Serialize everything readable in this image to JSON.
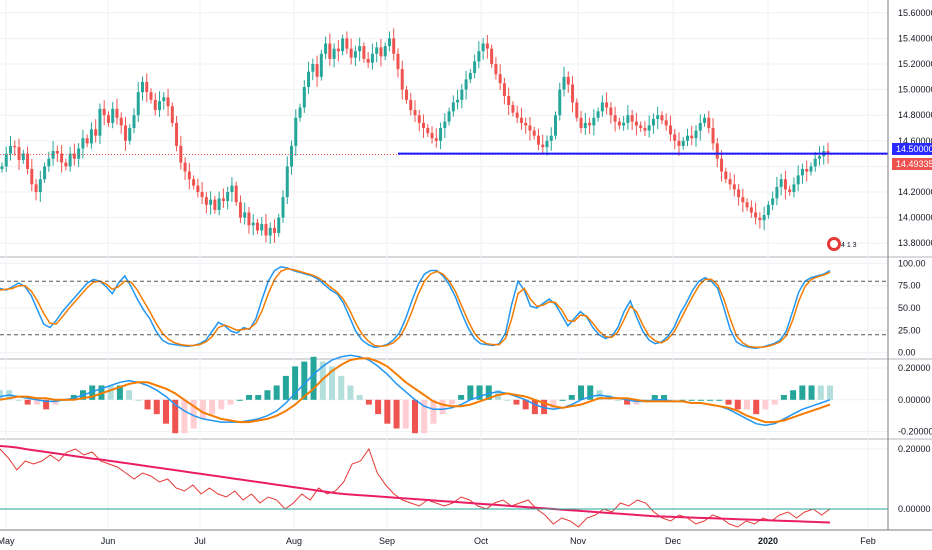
{
  "colors": {
    "up": "#26a69a",
    "down": "#ef5350",
    "k_line": "#2196f3",
    "d_line": "#f57c00",
    "grid": "#eef1f5",
    "axis_line": "#787b86",
    "support_line": "#1a1aff",
    "price_badge": "#ef5350",
    "level_badge": "#2a2aff",
    "rsi_line": "#e53935",
    "rsi_ma": "#e91e63",
    "rsi_green": "#43a047"
  },
  "time_axis": [
    "May",
    "Jun",
    "Jul",
    "Aug",
    "Sep",
    "Oct",
    "Nov",
    "Dec",
    "2020",
    "Feb"
  ],
  "price_badge_text": "14.49335",
  "level_badge_text": "14.50000",
  "event_badge_text": "4 1 3",
  "chart_data": [
    {
      "type": "candlestick",
      "ylim": [
        13.7,
        15.7
      ],
      "y_ticks": [
        "15.60000",
        "15.40000",
        "15.20000",
        "15.00000",
        "14.80000",
        "14.60000",
        "14.40000",
        "14.20000",
        "14.00000",
        "13.80000"
      ],
      "y_tick_values": [
        15.6,
        15.4,
        15.2,
        15.0,
        14.8,
        14.6,
        14.4,
        14.2,
        14.0,
        13.8
      ],
      "support_level": 14.5,
      "last_price": 14.49335,
      "closes": [
        14.4,
        14.5,
        14.56,
        14.55,
        14.45,
        14.5,
        14.38,
        14.26,
        14.2,
        14.3,
        14.4,
        14.46,
        14.52,
        14.5,
        14.43,
        14.4,
        14.5,
        14.46,
        14.54,
        14.62,
        14.58,
        14.69,
        14.64,
        14.85,
        14.8,
        14.74,
        14.85,
        14.78,
        14.72,
        14.6,
        14.7,
        14.8,
        14.98,
        15.06,
        14.98,
        14.92,
        14.84,
        14.91,
        14.94,
        14.87,
        14.74,
        14.56,
        14.43,
        14.36,
        14.3,
        14.25,
        14.2,
        14.16,
        14.1,
        14.14,
        14.06,
        14.15,
        14.13,
        14.2,
        14.25,
        14.12,
        14.0,
        14.04,
        13.94,
        13.96,
        13.9,
        13.95,
        13.86,
        13.92,
        13.88,
        14.0,
        14.16,
        14.4,
        14.56,
        14.78,
        14.86,
        15.02,
        15.14,
        15.2,
        15.1,
        15.28,
        15.36,
        15.24,
        15.32,
        15.3,
        15.4,
        15.32,
        15.25,
        15.3,
        15.34,
        15.24,
        15.21,
        15.28,
        15.33,
        15.26,
        15.34,
        15.4,
        15.28,
        15.16,
        15.0,
        14.92,
        14.84,
        14.8,
        14.74,
        14.7,
        14.66,
        14.62,
        14.6,
        14.7,
        14.75,
        14.83,
        14.9,
        14.92,
        15.0,
        15.08,
        15.13,
        15.22,
        15.3,
        15.36,
        15.32,
        15.2,
        15.12,
        15.05,
        14.95,
        14.88,
        14.82,
        14.78,
        14.74,
        14.72,
        14.68,
        14.64,
        14.57,
        14.55,
        14.6,
        14.64,
        14.8,
        15.0,
        15.1,
        15.04,
        14.9,
        14.78,
        14.7,
        14.74,
        14.72,
        14.78,
        14.83,
        14.9,
        14.86,
        14.8,
        14.75,
        14.72,
        14.74,
        14.8,
        14.75,
        14.72,
        14.7,
        14.68,
        14.72,
        14.77,
        14.8,
        14.76,
        14.72,
        14.65,
        14.6,
        14.56,
        14.6,
        14.64,
        14.62,
        14.68,
        14.74,
        14.78,
        14.7,
        14.58,
        14.46,
        14.36,
        14.3,
        14.26,
        14.22,
        14.16,
        14.12,
        14.08,
        14.04,
        14.0,
        13.98,
        14.02,
        14.1,
        14.15,
        14.24,
        14.3,
        14.22,
        14.2,
        14.26,
        14.33,
        14.38,
        14.36,
        14.4,
        14.46,
        14.48,
        14.52,
        14.5
      ]
    },
    {
      "type": "line",
      "title": "",
      "ylim": [
        -6,
        106
      ],
      "y_ticks": [
        "100.00",
        "75.00",
        "50.00",
        "25.00",
        "0.00"
      ],
      "y_tick_values": [
        100,
        75,
        50,
        25,
        0
      ],
      "reference_lines": [
        80,
        20
      ],
      "series": [
        {
          "values": [
            72,
            70,
            74,
            78,
            74,
            64,
            48,
            32,
            28,
            36,
            46,
            54,
            62,
            70,
            78,
            82,
            80,
            74,
            66,
            78,
            86,
            74,
            60,
            48,
            38,
            24,
            14,
            10,
            9,
            8,
            7,
            8,
            10,
            14,
            24,
            34,
            30,
            24,
            22,
            28,
            26,
            38,
            60,
            80,
            92,
            96,
            95,
            92,
            90,
            88,
            86,
            82,
            76,
            70,
            66,
            56,
            40,
            24,
            14,
            9,
            6,
            7,
            9,
            14,
            22,
            38,
            58,
            76,
            88,
            92,
            92,
            86,
            76,
            62,
            44,
            28,
            16,
            10,
            9,
            8,
            10,
            22,
            54,
            80,
            70,
            52,
            50,
            55,
            60,
            54,
            42,
            30,
            38,
            46,
            40,
            28,
            20,
            16,
            18,
            28,
            46,
            58,
            40,
            24,
            14,
            10,
            12,
            18,
            28,
            44,
            56,
            70,
            80,
            84,
            80,
            72,
            50,
            26,
            12,
            8,
            6,
            5,
            6,
            8,
            10,
            14,
            24,
            46,
            68,
            80,
            84,
            86,
            88,
            92
          ]
        },
        {
          "values": [
            70,
            71,
            72,
            75,
            75,
            69,
            58,
            44,
            33,
            32,
            40,
            49,
            57,
            65,
            73,
            79,
            80,
            77,
            71,
            74,
            80,
            79,
            70,
            58,
            46,
            33,
            22,
            15,
            11,
            9,
            8,
            8,
            9,
            12,
            18,
            28,
            31,
            28,
            25,
            26,
            27,
            33,
            47,
            66,
            82,
            91,
            94,
            93,
            91,
            89,
            87,
            84,
            79,
            73,
            68,
            60,
            48,
            33,
            21,
            13,
            8,
            7,
            8,
            11,
            17,
            29,
            46,
            65,
            80,
            88,
            91,
            88,
            80,
            68,
            52,
            36,
            22,
            14,
            10,
            9,
            9,
            16,
            38,
            66,
            72,
            60,
            52,
            53,
            57,
            56,
            48,
            36,
            35,
            42,
            41,
            33,
            24,
            18,
            17,
            23,
            37,
            52,
            46,
            31,
            19,
            13,
            11,
            15,
            23,
            36,
            50,
            63,
            75,
            82,
            82,
            76,
            60,
            38,
            19,
            11,
            7,
            6,
            6,
            7,
            9,
            12,
            19,
            36,
            58,
            74,
            82,
            85,
            87,
            90
          ]
        }
      ]
    },
    {
      "type": "line",
      "title": "",
      "ylim": [
        -0.24,
        0.25
      ],
      "y_ticks": [
        "0.20000",
        "0.00000",
        "-0.20000"
      ],
      "y_tick_values": [
        0.2,
        0,
        -0.2
      ],
      "series": [
        {
          "values": [
            0.02,
            0.03,
            0.02,
            0.01,
            0.0,
            -0.01,
            -0.01,
            0.0,
            0.01,
            0.03,
            0.05,
            0.07,
            0.09,
            0.11,
            0.12,
            0.11,
            0.09,
            0.06,
            0.02,
            -0.03,
            -0.07,
            -0.1,
            -0.12,
            -0.13,
            -0.14,
            -0.14,
            -0.14,
            -0.13,
            -0.12,
            -0.1,
            -0.07,
            -0.02,
            0.04,
            0.1,
            0.16,
            0.21,
            0.25,
            0.27,
            0.28,
            0.27,
            0.25,
            0.21,
            0.16,
            0.1,
            0.05,
            0.0,
            -0.04,
            -0.06,
            -0.06,
            -0.05,
            -0.03,
            0.0,
            0.02,
            0.04,
            0.05,
            0.04,
            0.02,
            0.0,
            -0.03,
            -0.05,
            -0.06,
            -0.05,
            -0.03,
            0.0,
            0.02,
            0.03,
            0.02,
            0.01,
            0.0,
            -0.01,
            -0.01,
            0.0,
            0.0,
            -0.01,
            -0.01,
            -0.02,
            -0.02,
            -0.03,
            -0.04,
            -0.06,
            -0.09,
            -0.12,
            -0.15,
            -0.16,
            -0.15,
            -0.12,
            -0.09,
            -0.06,
            -0.04,
            -0.02,
            0.0
          ]
        },
        {
          "values": [
            0.0,
            0.01,
            0.02,
            0.02,
            0.01,
            0.01,
            0.0,
            0.0,
            0.0,
            0.01,
            0.02,
            0.04,
            0.06,
            0.08,
            0.1,
            0.11,
            0.11,
            0.09,
            0.07,
            0.04,
            0.0,
            -0.04,
            -0.08,
            -0.1,
            -0.12,
            -0.13,
            -0.14,
            -0.14,
            -0.13,
            -0.12,
            -0.1,
            -0.07,
            -0.03,
            0.02,
            0.07,
            0.13,
            0.18,
            0.22,
            0.25,
            0.26,
            0.26,
            0.24,
            0.21,
            0.16,
            0.11,
            0.07,
            0.03,
            -0.01,
            -0.03,
            -0.04,
            -0.04,
            -0.03,
            -0.01,
            0.01,
            0.03,
            0.04,
            0.03,
            0.02,
            0.0,
            -0.02,
            -0.04,
            -0.05,
            -0.04,
            -0.03,
            -0.01,
            0.01,
            0.01,
            0.01,
            0.01,
            0.0,
            -0.01,
            -0.01,
            -0.01,
            -0.01,
            -0.01,
            -0.02,
            -0.02,
            -0.03,
            -0.04,
            -0.05,
            -0.07,
            -0.1,
            -0.12,
            -0.14,
            -0.14,
            -0.13,
            -0.11,
            -0.09,
            -0.07,
            -0.05,
            -0.03
          ]
        }
      ]
    },
    {
      "type": "line",
      "title": "",
      "ylim": [
        -0.07,
        0.23
      ],
      "y_ticks": [
        "0.20000",
        "0.00000"
      ],
      "y_tick_values": [
        0.2,
        0
      ],
      "series": [
        {
          "values": [
            0.2,
            0.17,
            0.13,
            0.16,
            0.15,
            0.16,
            0.18,
            0.16,
            0.19,
            0.2,
            0.18,
            0.19,
            0.16,
            0.15,
            0.14,
            0.12,
            0.1,
            0.12,
            0.11,
            0.09,
            0.1,
            0.07,
            0.06,
            0.08,
            0.05,
            0.07,
            0.05,
            0.04,
            0.06,
            0.03,
            0.05,
            0.02,
            0.04,
            0.03,
            0.0,
            0.02,
            0.05,
            0.03,
            0.07,
            0.05,
            0.06,
            0.09,
            0.15,
            0.16,
            0.2,
            0.12,
            0.08,
            0.05,
            0.03,
            0.02,
            0.01,
            0.03,
            0.02,
            0.01,
            0.02,
            0.04,
            0.03,
            0.01,
            0.0,
            0.02,
            0.03,
            0.01,
            0.02,
            0.03,
            0.0,
            -0.02,
            -0.05,
            -0.03,
            -0.04,
            -0.06,
            -0.03,
            -0.02,
            0.0,
            -0.01,
            0.02,
            0.01,
            0.03,
            0.02,
            -0.01,
            -0.03,
            -0.04,
            -0.02,
            -0.03,
            -0.05,
            -0.04,
            -0.02,
            -0.03,
            -0.05,
            -0.06,
            -0.04,
            -0.05,
            -0.03,
            -0.04,
            -0.02,
            -0.01,
            -0.03,
            -0.01,
            0.0,
            -0.02,
            0.0
          ]
        },
        {
          "values": [
            0.21,
            0.208,
            0.205,
            0.2,
            0.196,
            0.192,
            0.188,
            0.184,
            0.18,
            0.176,
            0.172,
            0.168,
            0.165,
            0.161,
            0.157,
            0.153,
            0.149,
            0.145,
            0.141,
            0.137,
            0.133,
            0.129,
            0.125,
            0.121,
            0.117,
            0.113,
            0.109,
            0.105,
            0.101,
            0.097,
            0.093,
            0.089,
            0.085,
            0.081,
            0.077,
            0.073,
            0.069,
            0.065,
            0.061,
            0.057,
            0.053,
            0.05,
            0.048,
            0.046,
            0.044,
            0.042,
            0.04,
            0.038,
            0.036,
            0.034,
            0.032,
            0.03,
            0.028,
            0.026,
            0.024,
            0.022,
            0.02,
            0.018,
            0.016,
            0.014,
            0.012,
            0.01,
            0.008,
            0.006,
            0.004,
            0.002,
            0.0,
            -0.002,
            -0.004,
            -0.006,
            -0.008,
            -0.01,
            -0.012,
            -0.014,
            -0.016,
            -0.018,
            -0.02,
            -0.022,
            -0.024,
            -0.025,
            -0.026,
            -0.027,
            -0.028,
            -0.029,
            -0.03,
            -0.031,
            -0.032,
            -0.033,
            -0.034,
            -0.035,
            -0.036,
            -0.037,
            -0.038,
            -0.039,
            -0.04,
            -0.041,
            -0.042,
            -0.043,
            -0.044,
            -0.045
          ]
        }
      ]
    }
  ]
}
